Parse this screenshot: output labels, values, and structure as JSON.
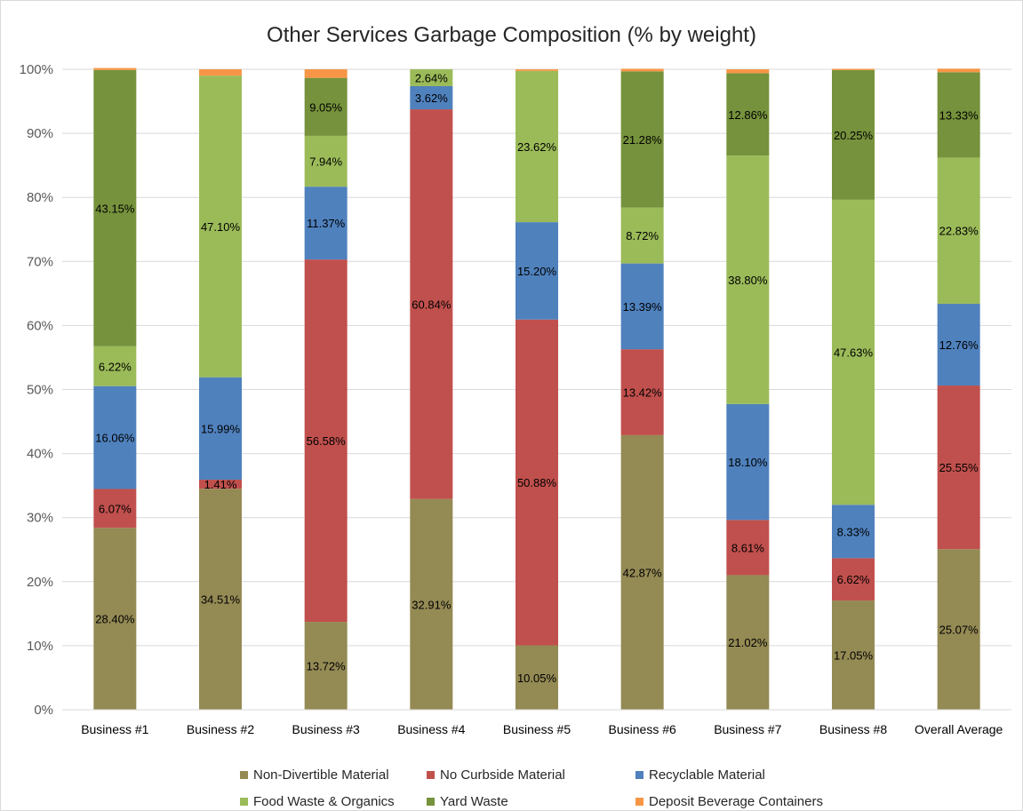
{
  "chart_data": {
    "type": "bar",
    "stacked": true,
    "percent_stacked": true,
    "title": "Other Services Garbage Composition (% by weight)",
    "xlabel": "",
    "ylabel": "",
    "ylim": [
      0,
      100
    ],
    "yticks": [
      "0%",
      "10%",
      "20%",
      "30%",
      "40%",
      "50%",
      "60%",
      "70%",
      "80%",
      "90%",
      "100%"
    ],
    "grid": true,
    "legend_position": "bottom",
    "categories": [
      "Business #1",
      "Business #2",
      "Business #3",
      "Business #4",
      "Business #5",
      "Business #6",
      "Business #7",
      "Business #8",
      "Overall Average"
    ],
    "series": [
      {
        "name": "Non-Divertible Material",
        "color": "#948a54",
        "values": [
          28.4,
          34.51,
          13.72,
          32.91,
          10.05,
          42.87,
          21.02,
          17.05,
          25.07
        ],
        "labels": [
          "28.40%",
          "34.51%",
          "13.72%",
          "32.91%",
          "10.05%",
          "42.87%",
          "21.02%",
          "17.05%",
          "25.07%"
        ]
      },
      {
        "name": "No Curbside Material",
        "color": "#c0504d",
        "values": [
          6.07,
          1.41,
          56.58,
          60.84,
          50.88,
          13.42,
          8.61,
          6.62,
          25.55
        ],
        "labels": [
          "6.07%",
          "1.41%",
          "56.58%",
          "60.84%",
          "50.88%",
          "13.42%",
          "8.61%",
          "6.62%",
          "25.55%"
        ]
      },
      {
        "name": "Recyclable Material",
        "color": "#4f81bd",
        "values": [
          16.06,
          15.99,
          11.37,
          3.62,
          15.2,
          13.39,
          18.1,
          8.33,
          12.76
        ],
        "labels": [
          "16.06%",
          "15.99%",
          "11.37%",
          "3.62%",
          "15.20%",
          "13.39%",
          "18.10%",
          "8.33%",
          "12.76%"
        ]
      },
      {
        "name": "Food Waste & Organics",
        "color": "#9bbb59",
        "values": [
          6.22,
          47.1,
          7.94,
          2.64,
          23.62,
          8.72,
          38.8,
          47.63,
          22.83
        ],
        "labels": [
          "6.22%",
          "47.10%",
          "7.94%",
          "2.64%",
          "23.62%",
          "8.72%",
          "38.80%",
          "47.63%",
          "22.83%"
        ]
      },
      {
        "name": "Yard Waste",
        "color": "#76923c",
        "values": [
          43.15,
          0,
          9.05,
          0,
          0,
          21.28,
          12.86,
          20.25,
          13.33
        ],
        "labels": [
          "43.15%",
          "",
          "9.05%",
          "",
          "",
          "21.28%",
          "12.86%",
          "20.25%",
          "13.33%"
        ]
      },
      {
        "name": "Deposit Beverage Containers",
        "color": "#f79646",
        "values": [
          0.3,
          0.99,
          1.34,
          0,
          0.25,
          0.4,
          0.61,
          0.2,
          0.56
        ],
        "labels": [
          "",
          "",
          "",
          "",
          "",
          "",
          "",
          "",
          ""
        ]
      }
    ]
  }
}
